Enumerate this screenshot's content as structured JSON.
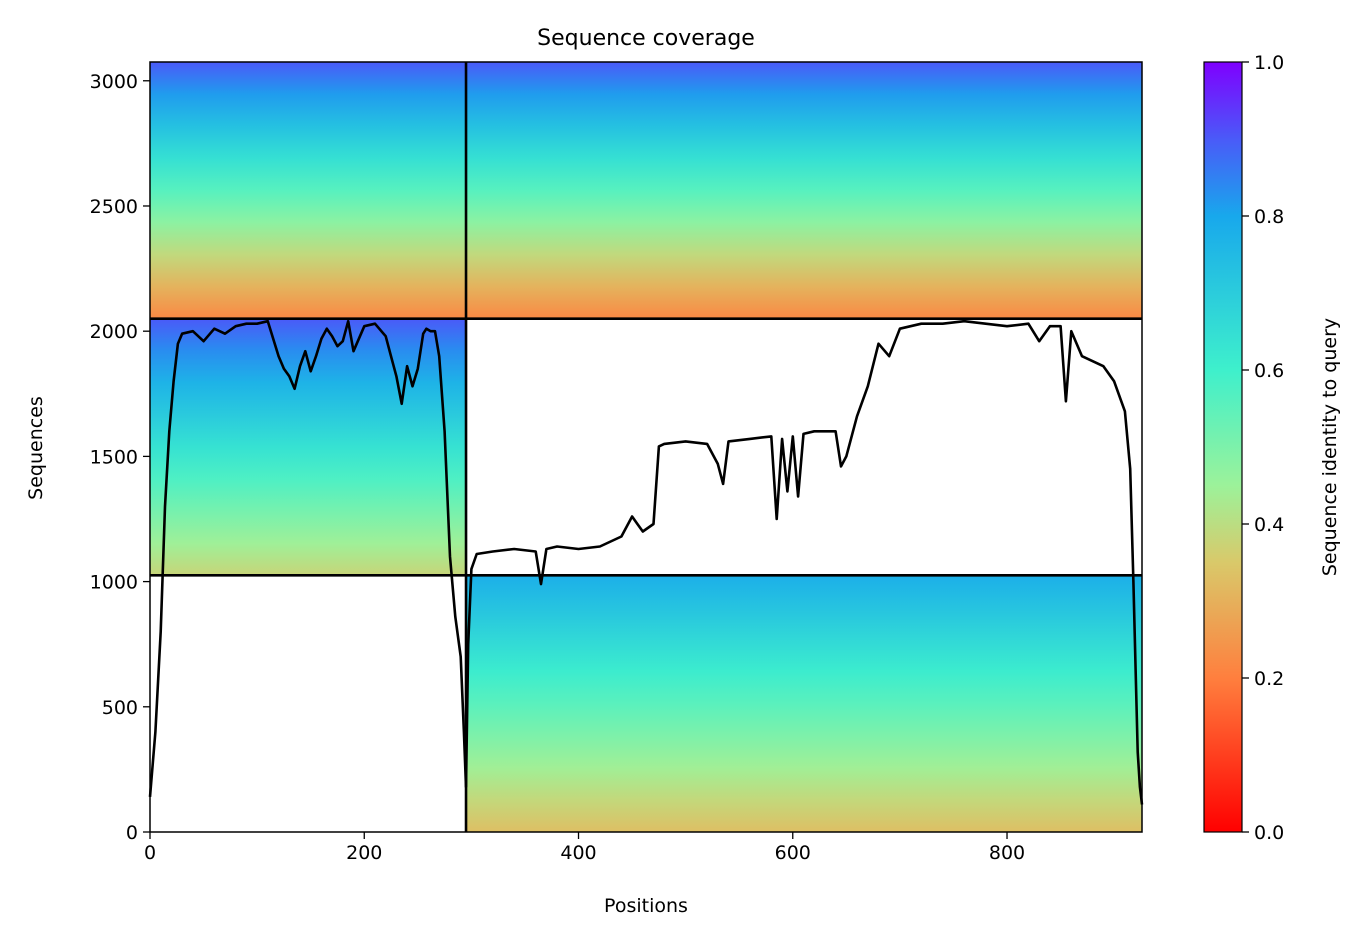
{
  "chart_data": {
    "type": "heatmap",
    "title": "Sequence coverage",
    "xlabel": "Positions",
    "ylabel": "Sequences",
    "xlim": [
      0,
      926
    ],
    "ylim": [
      0,
      3075
    ],
    "xticks": [
      0,
      200,
      400,
      600,
      800
    ],
    "yticks": [
      0,
      500,
      1000,
      1500,
      2000,
      2500,
      3000
    ],
    "grid": false,
    "colormap": "rainbow_r",
    "colorbar": {
      "label": "Sequence identity to query",
      "range": [
        0,
        1
      ],
      "ticks": [
        0.0,
        0.2,
        0.4,
        0.6,
        0.8,
        1.0
      ],
      "tick_labels": [
        "0.0",
        "0.2",
        "0.4",
        "0.6",
        "0.8",
        "1.0"
      ]
    },
    "dividers": {
      "x": [
        295
      ],
      "y": [
        1025,
        2050
      ]
    },
    "blocks": [
      {
        "x": [
          0,
          295
        ],
        "y": [
          2050,
          3075
        ],
        "identity_bottom": 0.22,
        "identity_top": 0.9
      },
      {
        "x": [
          295,
          926
        ],
        "y": [
          2050,
          3075
        ],
        "identity_bottom": 0.22,
        "identity_top": 0.9
      },
      {
        "x": [
          0,
          295
        ],
        "y": [
          1025,
          2050
        ],
        "identity_bottom": 0.38,
        "identity_top": 0.9
      },
      {
        "x": [
          295,
          926
        ],
        "y": [
          0,
          1025
        ],
        "identity_bottom": 0.33,
        "identity_top": 0.78
      }
    ],
    "series": [
      {
        "name": "coverage",
        "x": [
          0,
          5,
          10,
          14,
          18,
          22,
          26,
          30,
          40,
          50,
          60,
          70,
          80,
          90,
          100,
          110,
          120,
          125,
          130,
          135,
          140,
          145,
          150,
          155,
          160,
          165,
          170,
          175,
          180,
          185,
          190,
          200,
          210,
          220,
          225,
          230,
          235,
          240,
          245,
          250,
          255,
          258,
          262,
          266,
          270,
          275,
          280,
          285,
          290,
          293,
          295,
          297,
          300,
          305,
          320,
          340,
          360,
          365,
          370,
          380,
          400,
          420,
          440,
          450,
          455,
          460,
          470,
          475,
          480,
          500,
          520,
          530,
          535,
          540,
          560,
          580,
          585,
          590,
          595,
          600,
          605,
          610,
          620,
          640,
          645,
          650,
          660,
          670,
          680,
          690,
          700,
          720,
          740,
          760,
          780,
          800,
          820,
          830,
          840,
          850,
          855,
          860,
          870,
          880,
          890,
          900,
          910,
          915,
          918,
          920,
          922,
          924,
          926
        ],
        "values": [
          140,
          400,
          800,
          1300,
          1600,
          1800,
          1950,
          1990,
          2000,
          1960,
          2010,
          1990,
          2020,
          2030,
          2030,
          2040,
          1900,
          1850,
          1820,
          1770,
          1860,
          1920,
          1840,
          1900,
          1970,
          2010,
          1980,
          1940,
          1960,
          2040,
          1920,
          2020,
          2030,
          1980,
          1900,
          1820,
          1710,
          1860,
          1780,
          1850,
          1990,
          2010,
          2000,
          2000,
          1900,
          1600,
          1100,
          860,
          700,
          400,
          180,
          750,
          1050,
          1110,
          1120,
          1130,
          1120,
          990,
          1130,
          1140,
          1130,
          1140,
          1180,
          1260,
          1230,
          1200,
          1230,
          1540,
          1550,
          1560,
          1550,
          1470,
          1390,
          1560,
          1570,
          1580,
          1250,
          1570,
          1360,
          1580,
          1340,
          1590,
          1600,
          1600,
          1460,
          1500,
          1660,
          1780,
          1950,
          1900,
          2010,
          2030,
          2030,
          2040,
          2030,
          2020,
          2030,
          1960,
          2020,
          2020,
          1720,
          2000,
          1900,
          1880,
          1860,
          1800,
          1680,
          1450,
          1000,
          650,
          320,
          180,
          110
        ]
      }
    ]
  }
}
